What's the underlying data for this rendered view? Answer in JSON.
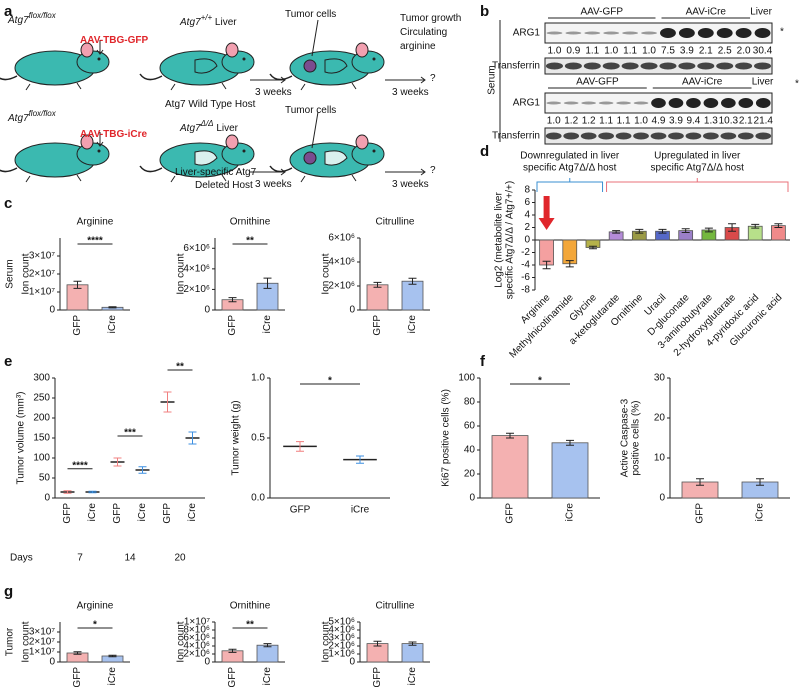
{
  "panel_labels": [
    "a",
    "b",
    "c",
    "d",
    "e",
    "f",
    "g"
  ],
  "a": {
    "items": [
      {
        "text": "Atg7",
        "sup": "flox/flox"
      },
      {
        "text": "AAV-TBG-GFP"
      },
      {
        "text": "Atg7",
        "sup": "+/+",
        "after": " Liver"
      },
      {
        "text": "Atg7 Wild Type Host"
      },
      {
        "text": "Tumor cells"
      },
      {
        "text": "3 weeks"
      },
      {
        "text": "Tumor growth"
      },
      {
        "text": "Circulating"
      },
      {
        "text": "arginine"
      },
      {
        "text": "3 weeks"
      },
      {
        "text": "?"
      },
      {
        "text": "Atg7",
        "sup": "flox/flox"
      },
      {
        "text": "AAV-TBG-iCre"
      },
      {
        "text": "Atg7",
        "sup": "Δ/Δ",
        "after": " Liver"
      },
      {
        "text": "Liver-specific Atg7"
      },
      {
        "text": "Deleted Host"
      },
      {
        "text": "Tumor cells"
      },
      {
        "text": "3 weeks"
      },
      {
        "text": "3 weeks"
      },
      {
        "text": "?"
      }
    ]
  },
  "b": {
    "side_label": "Serum",
    "blots": [
      {
        "groups": [
          "AAV-GFP",
          "AAV-iCre",
          "Liver"
        ],
        "marker": "*",
        "protein": "ARG1",
        "control": "Transferrin",
        "ratios": [
          "1.0",
          "0.9",
          "1.1",
          "1.0",
          "1.1",
          "1.0",
          "7.5",
          "3.9",
          "2.1",
          "2.5",
          "2.0",
          "30.4"
        ]
      },
      {
        "groups": [
          "AAV-GFP",
          "AAV-iCre",
          "Liver"
        ],
        "marker": "*",
        "protein": "ARG1",
        "control": "Transferrin",
        "ratios": [
          "1.0",
          "1.2",
          "1.2",
          "1.1",
          "1.1",
          "1.0",
          "4.9",
          "3.9",
          "9.4",
          "1.3",
          "10.3",
          "2.1",
          "21.4"
        ]
      }
    ]
  },
  "c": {
    "side_label": "Serum"
  },
  "d": {
    "annotations": [
      {
        "lines": [
          "Downregulated in liver",
          "specific Atg7Δ/Δ host"
        ],
        "color": "#3a8fd1"
      },
      {
        "lines": [
          "Upregulated in liver",
          "specific Atg7Δ/Δ host"
        ],
        "color": "#e8707a"
      }
    ]
  },
  "e": {
    "days_label": "Days",
    "days": [
      7,
      14,
      20
    ]
  },
  "g": {
    "side_label": "Tumor"
  },
  "chart_data": [
    {
      "type": "bar",
      "title": "Arginine",
      "ylabel": "Ion count",
      "categories": [
        "GFP",
        "iCre"
      ],
      "values": [
        14000000,
        1500000
      ],
      "errors": [
        2000000,
        300000
      ],
      "colors": [
        "#f4b1b1",
        "#a7c2ef"
      ],
      "ylim": [
        0,
        40000000
      ],
      "yticks": [
        0,
        {
          "value": 10000000,
          "label": "1×10⁷"
        },
        {
          "value": 20000000,
          "label": "2×10⁷"
        },
        {
          "value": 30000000,
          "label": "3×10⁷"
        }
      ],
      "significance": [
        {
          "from": 0,
          "to": 1,
          "label": "****"
        }
      ]
    },
    {
      "type": "bar",
      "title": "Ornithine",
      "ylabel": "Ion count",
      "categories": [
        "GFP",
        "iCre"
      ],
      "values": [
        1000000,
        2600000
      ],
      "errors": [
        200000,
        500000
      ],
      "colors": [
        "#f4b1b1",
        "#a7c2ef"
      ],
      "ylim": [
        0,
        7000000
      ],
      "yticks": [
        0,
        {
          "value": 2000000,
          "label": "2×10⁶"
        },
        {
          "value": 4000000,
          "label": "4×10⁶"
        },
        {
          "value": 6000000,
          "label": "6×10⁶"
        }
      ],
      "significance": [
        {
          "from": 0,
          "to": 1,
          "label": "**"
        }
      ]
    },
    {
      "type": "bar",
      "title": "Citrulline",
      "ylabel": "Ion count",
      "categories": [
        "GFP",
        "iCre"
      ],
      "values": [
        2100000,
        2400000
      ],
      "errors": [
        200000,
        250000
      ],
      "colors": [
        "#f4b1b1",
        "#a7c2ef"
      ],
      "ylim": [
        0,
        6000000
      ],
      "yticks": [
        0,
        {
          "value": 2000000,
          "label": "2×10⁶"
        },
        {
          "value": 4000000,
          "label": "4×10⁶"
        },
        {
          "value": 6000000,
          "label": "6×10⁶"
        }
      ]
    },
    {
      "type": "bar",
      "ylabel": [
        "Log2 (metabolite liver",
        "specific Atg7Δ/Δ / Atg7+/+)"
      ],
      "categories": [
        "Arginine",
        "Methylnicotinamide",
        "Glycine",
        "a-ketoglutarate",
        "Ornithine",
        "Uracil",
        "D-gluconate",
        "3-aminobutyrate",
        "2-hydroxyglutarate",
        "4-pyridoxic acid",
        "Glucuronic acid"
      ],
      "values": [
        -4,
        -3.8,
        -1.2,
        1.3,
        1.4,
        1.4,
        1.5,
        1.6,
        2,
        2.2,
        2.3
      ],
      "errors": [
        0.6,
        0.5,
        0.2,
        0.2,
        0.3,
        0.3,
        0.3,
        0.3,
        0.6,
        0.3,
        0.3
      ],
      "colors": [
        "#f4a0a0",
        "#f3a73a",
        "#b5b24a",
        "#b48bd8",
        "#9a9a45",
        "#5568c8",
        "#9b7fc9",
        "#74b83e",
        "#d94a4a",
        "#b7e08a",
        "#f08a8a"
      ],
      "ylim": [
        -8,
        8
      ],
      "yticks": [
        -8,
        -6,
        -4,
        -2,
        0,
        2,
        4,
        6,
        8
      ]
    },
    {
      "type": "dot",
      "ylabel": "Tumor volume (mm³)",
      "categories": [
        "GFP",
        "iCre",
        "GFP",
        "iCre",
        "GFP",
        "iCre"
      ],
      "values": [
        15,
        15,
        90,
        70,
        240,
        150
      ],
      "errors": [
        3,
        2,
        10,
        8,
        25,
        15
      ],
      "colors": [
        "#f07f7f",
        "#3d8fe0",
        "#f07f7f",
        "#3d8fe0",
        "#f07f7f",
        "#3d8fe0"
      ],
      "ylim": [
        0,
        300
      ],
      "yticks": [
        0,
        50,
        100,
        150,
        200,
        250,
        300
      ],
      "significance": [
        {
          "from": 0,
          "to": 1,
          "label": "****"
        },
        {
          "from": 2,
          "to": 3,
          "label": "***"
        },
        {
          "from": 4,
          "to": 5,
          "label": "**"
        }
      ]
    },
    {
      "type": "dot",
      "ylabel": "Tumor weight (g)",
      "categories": [
        "GFP",
        "iCre"
      ],
      "values": [
        0.43,
        0.32
      ],
      "errors": [
        0.04,
        0.03
      ],
      "colors": [
        "#f07f7f",
        "#3d8fe0"
      ],
      "ylim": [
        0,
        1
      ],
      "yticks": [
        {
          "value": 0,
          "label": "0.0"
        },
        {
          "value": 0.5,
          "label": "0.5"
        },
        {
          "value": 1,
          "label": "1.0"
        }
      ],
      "significance": [
        {
          "from": 0,
          "to": 1,
          "label": "*"
        }
      ]
    },
    {
      "type": "bar",
      "ylabel": "Ki67 positive cells (%)",
      "categories": [
        "GFP",
        "iCre"
      ],
      "values": [
        52,
        46
      ],
      "errors": [
        2,
        2
      ],
      "colors": [
        "#f4b1b1",
        "#a7c2ef"
      ],
      "ylim": [
        0,
        100
      ],
      "yticks": [
        0,
        20,
        40,
        60,
        80,
        100
      ],
      "significance": [
        {
          "from": 0,
          "to": 1,
          "label": "*"
        }
      ]
    },
    {
      "type": "bar",
      "ylabel": [
        "Active Caspase-3",
        "positive cells (%)"
      ],
      "categories": [
        "GFP",
        "iCre"
      ],
      "values": [
        4,
        4
      ],
      "errors": [
        0.8,
        0.8
      ],
      "colors": [
        "#f4b1b1",
        "#a7c2ef"
      ],
      "ylim": [
        0,
        30
      ],
      "yticks": [
        0,
        10,
        20,
        30
      ]
    },
    {
      "type": "bar",
      "title": "Arginine",
      "ylabel": "Ion count",
      "categories": [
        "GFP",
        "iCre"
      ],
      "values": [
        9000000,
        6000000
      ],
      "errors": [
        1200000,
        700000
      ],
      "colors": [
        "#f4b1b1",
        "#a7c2ef"
      ],
      "ylim": [
        0,
        40000000
      ],
      "yticks": [
        0,
        {
          "value": 10000000,
          "label": "1×10⁷"
        },
        {
          "value": 20000000,
          "label": "2×10⁷"
        },
        {
          "value": 30000000,
          "label": "3×10⁷"
        }
      ],
      "significance": [
        {
          "from": 0,
          "to": 1,
          "label": "*"
        }
      ]
    },
    {
      "type": "bar",
      "title": "Ornithine",
      "ylabel": "Ion count",
      "categories": [
        "GFP",
        "iCre"
      ],
      "values": [
        2800000,
        4200000
      ],
      "errors": [
        400000,
        400000
      ],
      "colors": [
        "#f4b1b1",
        "#a7c2ef"
      ],
      "ylim": [
        0,
        10000000
      ],
      "yticks": [
        0,
        {
          "value": 2000000,
          "label": "2×10⁶"
        },
        {
          "value": 4000000,
          "label": "4×10⁶"
        },
        {
          "value": 6000000,
          "label": "6×10⁶"
        },
        {
          "value": 8000000,
          "label": "8×10⁶"
        },
        {
          "value": 10000000,
          "label": "1×10⁷"
        }
      ],
      "significance": [
        {
          "from": 0,
          "to": 1,
          "label": "**"
        }
      ]
    },
    {
      "type": "bar",
      "title": "Citrulline",
      "ylabel": "Ion count",
      "categories": [
        "GFP",
        "iCre"
      ],
      "values": [
        2300000,
        2300000
      ],
      "errors": [
        300000,
        200000
      ],
      "colors": [
        "#f4b1b1",
        "#a7c2ef"
      ],
      "ylim": [
        0,
        5000000
      ],
      "yticks": [
        0,
        {
          "value": 1000000,
          "label": "1×10⁶"
        },
        {
          "value": 2000000,
          "label": "2×10⁶"
        },
        {
          "value": 3000000,
          "label": "3×10⁶"
        },
        {
          "value": 4000000,
          "label": "4×10⁶"
        },
        {
          "value": 5000000,
          "label": "5×10⁶"
        }
      ]
    }
  ]
}
